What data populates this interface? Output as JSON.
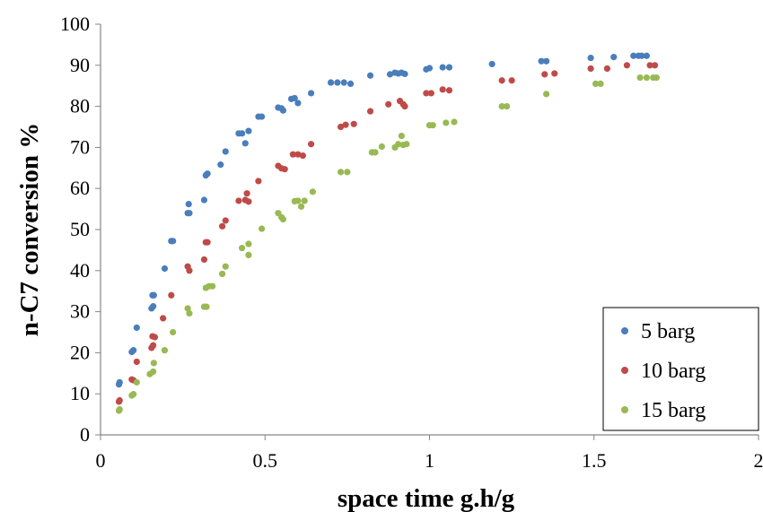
{
  "chart_data": {
    "type": "scatter",
    "title": "",
    "xlabel": "space time g.h/g",
    "ylabel": "n-C7 conversion %",
    "xlim": [
      0,
      2
    ],
    "ylim": [
      0,
      100
    ],
    "x_ticks": [
      "0",
      "0.5",
      "1",
      "1.5",
      "2"
    ],
    "y_ticks": [
      "0",
      "10",
      "20",
      "30",
      "40",
      "50",
      "60",
      "70",
      "80",
      "90",
      "100"
    ],
    "grid": false,
    "legend_position": "bottom-right",
    "series": [
      {
        "name": "5 barg",
        "color": "#4a7ebb",
        "points": [
          [
            0.056,
            12.3
          ],
          [
            0.058,
            12.8
          ],
          [
            0.095,
            20.2
          ],
          [
            0.1,
            20.6
          ],
          [
            0.11,
            26.1
          ],
          [
            0.155,
            30.8
          ],
          [
            0.16,
            31.3
          ],
          [
            0.158,
            34.0
          ],
          [
            0.162,
            34.0
          ],
          [
            0.195,
            40.5
          ],
          [
            0.215,
            47.2
          ],
          [
            0.22,
            47.2
          ],
          [
            0.265,
            54.0
          ],
          [
            0.27,
            54.0
          ],
          [
            0.268,
            56.2
          ],
          [
            0.315,
            57.2
          ],
          [
            0.32,
            63.2
          ],
          [
            0.325,
            63.6
          ],
          [
            0.365,
            65.8
          ],
          [
            0.38,
            69.0
          ],
          [
            0.42,
            73.4
          ],
          [
            0.43,
            73.4
          ],
          [
            0.44,
            71.0
          ],
          [
            0.45,
            74.0
          ],
          [
            0.48,
            77.5
          ],
          [
            0.49,
            77.5
          ],
          [
            0.54,
            79.7
          ],
          [
            0.55,
            79.5
          ],
          [
            0.555,
            79.0
          ],
          [
            0.58,
            81.8
          ],
          [
            0.59,
            82.0
          ],
          [
            0.6,
            80.8
          ],
          [
            0.64,
            83.2
          ],
          [
            0.7,
            85.8
          ],
          [
            0.72,
            85.8
          ],
          [
            0.74,
            85.8
          ],
          [
            0.76,
            85.5
          ],
          [
            0.82,
            87.5
          ],
          [
            0.88,
            87.8
          ],
          [
            0.895,
            88.2
          ],
          [
            0.905,
            88.0
          ],
          [
            0.915,
            88.2
          ],
          [
            0.925,
            87.9
          ],
          [
            0.99,
            89.0
          ],
          [
            1.0,
            89.3
          ],
          [
            1.04,
            89.5
          ],
          [
            1.06,
            89.5
          ],
          [
            1.19,
            90.3
          ],
          [
            1.34,
            91.0
          ],
          [
            1.355,
            91.0
          ],
          [
            1.49,
            91.8
          ],
          [
            1.56,
            92.0
          ],
          [
            1.62,
            92.3
          ],
          [
            1.635,
            92.3
          ],
          [
            1.645,
            92.3
          ],
          [
            1.66,
            92.3
          ]
        ]
      },
      {
        "name": "10 barg",
        "color": "#be4b48",
        "points": [
          [
            0.056,
            8.1
          ],
          [
            0.058,
            8.4
          ],
          [
            0.095,
            13.5
          ],
          [
            0.1,
            13.3
          ],
          [
            0.11,
            17.8
          ],
          [
            0.155,
            21.2
          ],
          [
            0.16,
            21.8
          ],
          [
            0.158,
            24.0
          ],
          [
            0.165,
            23.8
          ],
          [
            0.19,
            28.4
          ],
          [
            0.215,
            34.0
          ],
          [
            0.265,
            41.0
          ],
          [
            0.27,
            40.0
          ],
          [
            0.315,
            42.7
          ],
          [
            0.32,
            46.9
          ],
          [
            0.325,
            46.9
          ],
          [
            0.37,
            50.8
          ],
          [
            0.38,
            52.2
          ],
          [
            0.42,
            57.0
          ],
          [
            0.44,
            57.2
          ],
          [
            0.445,
            58.8
          ],
          [
            0.45,
            56.8
          ],
          [
            0.48,
            61.8
          ],
          [
            0.54,
            65.5
          ],
          [
            0.55,
            64.9
          ],
          [
            0.56,
            64.7
          ],
          [
            0.585,
            68.3
          ],
          [
            0.6,
            68.3
          ],
          [
            0.615,
            68.0
          ],
          [
            0.64,
            70.8
          ],
          [
            0.73,
            75.0
          ],
          [
            0.745,
            75.5
          ],
          [
            0.77,
            75.7
          ],
          [
            0.82,
            78.8
          ],
          [
            0.875,
            80.5
          ],
          [
            0.91,
            81.3
          ],
          [
            0.92,
            80.5
          ],
          [
            0.925,
            80.0
          ],
          [
            0.99,
            83.2
          ],
          [
            1.005,
            83.2
          ],
          [
            1.04,
            84.1
          ],
          [
            1.06,
            83.9
          ],
          [
            1.22,
            86.3
          ],
          [
            1.25,
            86.3
          ],
          [
            1.35,
            87.8
          ],
          [
            1.38,
            88.0
          ],
          [
            1.49,
            89.2
          ],
          [
            1.54,
            89.2
          ],
          [
            1.6,
            90.0
          ],
          [
            1.67,
            90.0
          ],
          [
            1.685,
            90.0
          ]
        ]
      },
      {
        "name": "15 barg",
        "color": "#98b954",
        "points": [
          [
            0.056,
            5.9
          ],
          [
            0.058,
            6.2
          ],
          [
            0.095,
            9.6
          ],
          [
            0.1,
            9.9
          ],
          [
            0.11,
            12.8
          ],
          [
            0.15,
            14.8
          ],
          [
            0.16,
            15.4
          ],
          [
            0.162,
            17.5
          ],
          [
            0.195,
            20.6
          ],
          [
            0.22,
            25.0
          ],
          [
            0.265,
            30.8
          ],
          [
            0.27,
            29.6
          ],
          [
            0.315,
            31.2
          ],
          [
            0.322,
            31.2
          ],
          [
            0.32,
            35.8
          ],
          [
            0.33,
            36.2
          ],
          [
            0.34,
            36.2
          ],
          [
            0.37,
            39.2
          ],
          [
            0.38,
            41.0
          ],
          [
            0.43,
            45.5
          ],
          [
            0.45,
            46.5
          ],
          [
            0.45,
            43.8
          ],
          [
            0.49,
            50.2
          ],
          [
            0.54,
            54.0
          ],
          [
            0.55,
            53.0
          ],
          [
            0.555,
            52.5
          ],
          [
            0.59,
            56.9
          ],
          [
            0.6,
            57.0
          ],
          [
            0.61,
            55.6
          ],
          [
            0.62,
            57.0
          ],
          [
            0.645,
            59.2
          ],
          [
            0.73,
            64.0
          ],
          [
            0.75,
            64.0
          ],
          [
            0.825,
            68.8
          ],
          [
            0.835,
            68.8
          ],
          [
            0.855,
            70.2
          ],
          [
            0.895,
            70.0
          ],
          [
            0.905,
            70.8
          ],
          [
            0.915,
            72.8
          ],
          [
            0.92,
            70.6
          ],
          [
            0.93,
            70.8
          ],
          [
            1.0,
            75.4
          ],
          [
            1.01,
            75.4
          ],
          [
            1.05,
            76.0
          ],
          [
            1.075,
            76.2
          ],
          [
            1.22,
            80.0
          ],
          [
            1.235,
            80.0
          ],
          [
            1.355,
            83.0
          ],
          [
            1.505,
            85.5
          ],
          [
            1.52,
            85.5
          ],
          [
            1.64,
            87.0
          ],
          [
            1.66,
            87.0
          ],
          [
            1.68,
            87.0
          ],
          [
            1.69,
            87.0
          ]
        ]
      }
    ]
  }
}
